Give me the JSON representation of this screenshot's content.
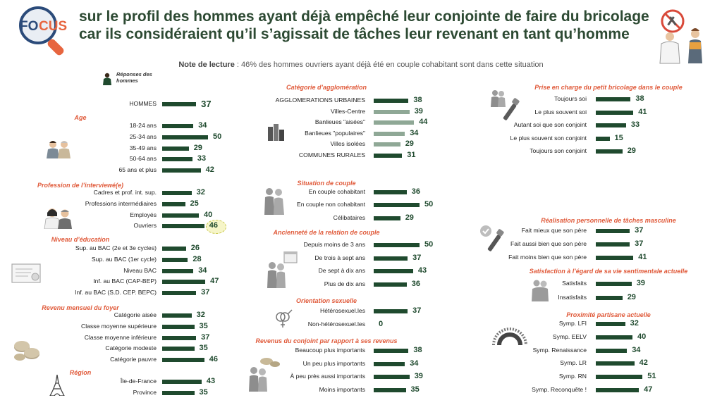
{
  "header": {
    "logo_text_a": "FO",
    "logo_text_b": "CUS",
    "title_line1": "sur le profil des hommes ayant déjà empêché leur conjointe de faire du bricolage",
    "title_line2": "car ils considéraient qu’il s’agissait de tâches leur revenant en tant qu’homme"
  },
  "note": {
    "label": "Note de lecture",
    "text": " : 46% des hommes ouvriers ayant déjà été en couple cohabitant sont dans cette situation"
  },
  "legend": {
    "line1": "Réponses des",
    "line2": "hommes"
  },
  "colors": {
    "bar": "#1f4a2e",
    "bar_light": "#8fa896",
    "section": "#e05a3a",
    "title": "#2d4a33"
  },
  "icons": {
    "header": "man-with-crossed-tools-and-woman-icon",
    "legend": "man-icon",
    "age": "two-men-icon",
    "profession": "two-workers-icon",
    "education": "diploma-icon",
    "income": "coins-icon",
    "region": "eiffel-tower-icon",
    "agglomeration": "buildings-icon",
    "couple": "couple-icon",
    "seniority": "calendar-couple-icon",
    "orientation": "gender-symbols-icon",
    "partner_income": "couple-coins-icon",
    "diy": "couple-tools-icon",
    "achievement": "check-tools-icon",
    "satisfaction": "couple-hug-icon",
    "politics": "hemicycle-icon"
  },
  "chart_data": {
    "type": "bar",
    "orientation": "horizontal",
    "unit": "%",
    "sections": [
      {
        "title": "",
        "categories": [
          "HOMMES"
        ],
        "values": [
          37
        ],
        "emphasis": true
      },
      {
        "title": "Age",
        "categories": [
          "18-24 ans",
          "25-34 ans",
          "35-49 ans",
          "50-64 ans",
          "65 ans et plus"
        ],
        "values": [
          34,
          50,
          29,
          33,
          42
        ]
      },
      {
        "title": "Profession de l’interviewé(e)",
        "categories": [
          "Cadres et prof. int. sup.",
          "Professions intermédiaires",
          "Employés",
          "Ouvriers"
        ],
        "values": [
          32,
          25,
          40,
          46
        ],
        "highlight_index": 3
      },
      {
        "title": "Niveau d’éducation",
        "categories": [
          "Sup. au BAC (2e et 3e cycles)",
          "Sup. au BAC (1er cycle)",
          "Niveau BAC",
          "Inf. au BAC (CAP-BEP)",
          "Inf. au BAC (S.D. CEP. BEPC)"
        ],
        "values": [
          26,
          28,
          34,
          47,
          37
        ]
      },
      {
        "title": "Revenu mensuel du foyer",
        "categories": [
          "Catégorie aisée",
          "Classe moyenne supérieure",
          "Classe moyenne inférieure",
          "Catégorie modeste",
          "Catégorie pauvre"
        ],
        "values": [
          32,
          35,
          37,
          35,
          46
        ]
      },
      {
        "title": "Région",
        "categories": [
          "Île-de-France",
          "Province"
        ],
        "values": [
          43,
          35
        ]
      },
      {
        "title": "Catégorie d’agglomération",
        "categories": [
          "AGGLOMERATIONS URBAINES",
          "Villes-Centre",
          "Banlieues \"aisées\"",
          "Banlieues \"populaires\"",
          "Villes isolées",
          "COMMUNES RURALES"
        ],
        "values": [
          38,
          39,
          44,
          34,
          29,
          31
        ],
        "light": [
          false,
          true,
          true,
          true,
          true,
          false
        ]
      },
      {
        "title": "Situation de couple",
        "categories": [
          "En couple cohabitant",
          "En couple non cohabitant",
          "Célibataires"
        ],
        "values": [
          36,
          50,
          29
        ]
      },
      {
        "title": "Ancienneté de la relation de couple",
        "categories": [
          "Depuis moins de 3 ans",
          "De trois à sept ans",
          "De sept à dix ans",
          "Plus de dix ans"
        ],
        "values": [
          50,
          37,
          43,
          36
        ]
      },
      {
        "title": "Orientation sexuelle",
        "categories": [
          "Hétérosexuel.les",
          "Non-hétérosexuel.les"
        ],
        "values": [
          37,
          0
        ]
      },
      {
        "title": "Revenus du conjoint par rapport à ses revenus",
        "categories": [
          "Beaucoup plus importants",
          "Un peu plus importants",
          "À peu près aussi importants",
          "Moins importants"
        ],
        "values": [
          38,
          34,
          39,
          35
        ]
      },
      {
        "title": "Prise en charge du petit bricolage dans le couple",
        "categories": [
          "Toujours soi",
          "Le plus souvent soi",
          "Autant soi que son conjoint",
          "Le plus souvent son conjoint",
          "Toujours son conjoint"
        ],
        "values": [
          38,
          41,
          33,
          15,
          29
        ]
      },
      {
        "title": "Réalisation personnelle de tâches masculine",
        "categories": [
          "Fait mieux que son père",
          "Fait aussi bien que son père",
          "Fait moins bien que son père"
        ],
        "values": [
          37,
          37,
          41
        ]
      },
      {
        "title": "Satisfaction à l’égard de sa vie sentimentale actuelle",
        "categories": [
          "Satisfaits",
          "Insatisfaits"
        ],
        "values": [
          39,
          29
        ]
      },
      {
        "title": "Proximité partisane actuelle",
        "categories": [
          "Symp. LFI",
          "Symp. EELV",
          "Symp. Renaissance",
          "Symp. LR",
          "Symp. RN",
          "Symp. Reconquête !"
        ],
        "values": [
          32,
          40,
          34,
          42,
          51,
          47
        ]
      }
    ]
  }
}
